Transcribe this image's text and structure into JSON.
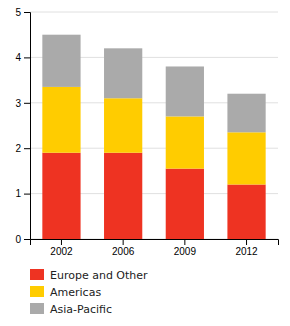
{
  "chart_data": {
    "type": "bar",
    "stacked": true,
    "categories": [
      "2002",
      "2006",
      "2009",
      "2012"
    ],
    "series": [
      {
        "name": "Europe and Other",
        "color": "#ee3322",
        "values": [
          1.9,
          1.9,
          1.55,
          1.2
        ]
      },
      {
        "name": "Americas",
        "color": "#ffcc00",
        "values": [
          1.45,
          1.2,
          1.15,
          1.15
        ]
      },
      {
        "name": "Asia-Pacific",
        "color": "#aaaaaa",
        "values": [
          1.15,
          1.1,
          1.1,
          0.85
        ]
      }
    ],
    "ylim": [
      0,
      5
    ],
    "yticks": [
      0,
      1,
      2,
      3,
      4,
      5
    ],
    "grid": true,
    "legend": "bottom"
  }
}
